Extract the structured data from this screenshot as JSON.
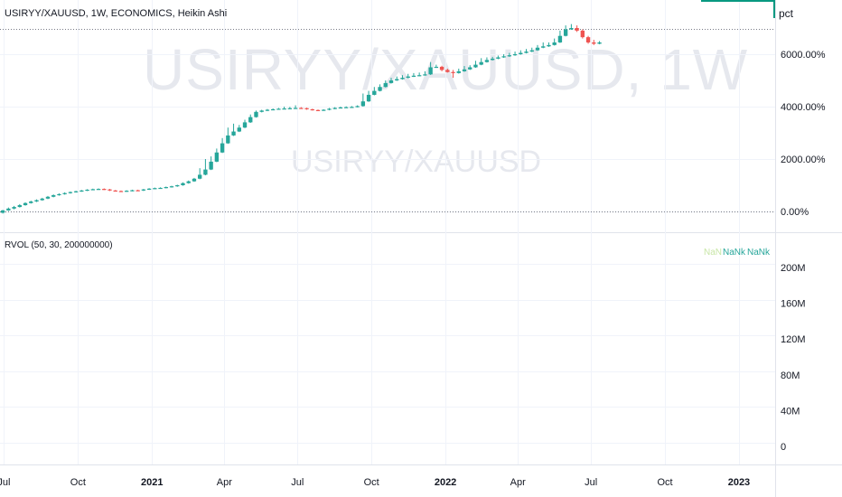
{
  "header": {
    "symbol_title": "USIRYY/XAUUSD, 1W, ECONOMICS, Heikin Ashi",
    "unit_label": "pct",
    "watermark_main": "USIRYY/XAUUSD, 1W",
    "watermark_sub": "USIRYY/XAUUSD"
  },
  "indicator": {
    "title": "RVOL (50, 30, 200000000)",
    "values": [
      "NaN",
      "NaNk",
      "NaNk"
    ],
    "value_colors": [
      "#c8e6a6",
      "#26a69a",
      "#26a69a"
    ]
  },
  "colors": {
    "up": "#26a69a",
    "down": "#ef5350",
    "axis_text": "#131722",
    "accent": "#089981"
  },
  "chart_data": {
    "type": "candlestick",
    "style": "Heikin Ashi",
    "timeframe": "1W",
    "price_axis": {
      "ticks": [
        0,
        2000,
        4000,
        6000
      ],
      "tick_labels": [
        "0.00%",
        "2000.00%",
        "4000.00%",
        "6000.00%"
      ],
      "range": [
        -100,
        7200
      ]
    },
    "volume_axis": {
      "tick_labels": [
        "200M",
        "160M",
        "120M",
        "80M",
        "40M",
        "0"
      ]
    },
    "time_axis": {
      "labels": [
        "Jul",
        "Oct",
        "2021",
        "Apr",
        "Jul",
        "Oct",
        "2022",
        "Apr",
        "Jul",
        "Oct",
        "2023"
      ],
      "label_dates": [
        "2020-07-01",
        "2020-10-01",
        "2021-01-01",
        "2021-04-01",
        "2021-07-01",
        "2021-10-01",
        "2022-01-01",
        "2022-04-01",
        "2022-07-01",
        "2022-10-01",
        "2023-01-01"
      ],
      "range": [
        "2020-06-26",
        "2023-02-15"
      ]
    },
    "reference_lines": [
      0,
      6950
    ],
    "candle_interval_days": 7,
    "first_candle_date": "2020-06-26",
    "candles": [
      [
        -50,
        40,
        -80,
        60
      ],
      [
        40,
        110,
        20,
        150
      ],
      [
        110,
        170,
        80,
        210
      ],
      [
        170,
        240,
        150,
        280
      ],
      [
        240,
        320,
        220,
        350
      ],
      [
        320,
        380,
        300,
        410
      ],
      [
        380,
        430,
        360,
        460
      ],
      [
        430,
        490,
        410,
        520
      ],
      [
        490,
        560,
        470,
        590
      ],
      [
        560,
        620,
        540,
        650
      ],
      [
        620,
        660,
        600,
        690
      ],
      [
        660,
        700,
        640,
        730
      ],
      [
        700,
        740,
        680,
        760
      ],
      [
        740,
        770,
        720,
        790
      ],
      [
        770,
        800,
        750,
        820
      ],
      [
        800,
        830,
        780,
        850
      ],
      [
        830,
        850,
        810,
        870
      ],
      [
        850,
        860,
        830,
        880
      ],
      [
        860,
        840,
        820,
        880
      ],
      [
        840,
        800,
        780,
        860
      ],
      [
        800,
        780,
        760,
        820
      ],
      [
        780,
        770,
        750,
        800
      ],
      [
        770,
        790,
        750,
        810
      ],
      [
        790,
        810,
        770,
        830
      ],
      [
        810,
        800,
        780,
        830
      ],
      [
        800,
        840,
        780,
        860
      ],
      [
        840,
        870,
        820,
        890
      ],
      [
        870,
        890,
        850,
        910
      ],
      [
        890,
        900,
        870,
        920
      ],
      [
        900,
        930,
        880,
        950
      ],
      [
        930,
        960,
        910,
        980
      ],
      [
        960,
        1000,
        940,
        1020
      ],
      [
        1000,
        1080,
        980,
        1110
      ],
      [
        1080,
        1150,
        1060,
        1180
      ],
      [
        1150,
        1250,
        1130,
        1280
      ],
      [
        1250,
        1400,
        1230,
        1650
      ],
      [
        1400,
        1600,
        1380,
        2000
      ],
      [
        1600,
        1900,
        1580,
        2100
      ],
      [
        1900,
        2250,
        1880,
        2400
      ],
      [
        2250,
        2600,
        2230,
        2800
      ],
      [
        2600,
        2900,
        2580,
        3200
      ],
      [
        2900,
        3050,
        2880,
        3350
      ],
      [
        3050,
        3200,
        3030,
        3300
      ],
      [
        3200,
        3400,
        3180,
        3500
      ],
      [
        3400,
        3600,
        3380,
        3700
      ],
      [
        3600,
        3800,
        3580,
        3850
      ],
      [
        3800,
        3850,
        3780,
        3880
      ],
      [
        3850,
        3880,
        3830,
        3910
      ],
      [
        3880,
        3900,
        3860,
        3930
      ],
      [
        3900,
        3920,
        3880,
        3950
      ],
      [
        3920,
        3930,
        3900,
        4000
      ],
      [
        3930,
        3940,
        3910,
        3990
      ],
      [
        3940,
        3950,
        3920,
        4050
      ],
      [
        3950,
        3940,
        3920,
        3980
      ],
      [
        3940,
        3900,
        3880,
        3960
      ],
      [
        3900,
        3870,
        3850,
        3920
      ],
      [
        3870,
        3860,
        3840,
        3890
      ],
      [
        3860,
        3880,
        3840,
        3900
      ],
      [
        3880,
        3920,
        3860,
        3950
      ],
      [
        3920,
        3950,
        3900,
        3980
      ],
      [
        3950,
        3970,
        3930,
        4000
      ],
      [
        3970,
        3980,
        3950,
        4010
      ],
      [
        3980,
        3990,
        3960,
        4020
      ],
      [
        3990,
        4020,
        3970,
        4050
      ],
      [
        4020,
        4200,
        4000,
        4500
      ],
      [
        4200,
        4450,
        4180,
        4600
      ],
      [
        4450,
        4600,
        4430,
        4750
      ],
      [
        4600,
        4750,
        4580,
        4850
      ],
      [
        4750,
        4900,
        4730,
        5000
      ],
      [
        4900,
        5000,
        4880,
        5100
      ],
      [
        5000,
        5050,
        4980,
        5150
      ],
      [
        5050,
        5100,
        5030,
        5200
      ],
      [
        5100,
        5150,
        5080,
        5250
      ],
      [
        5150,
        5180,
        5130,
        5280
      ],
      [
        5180,
        5200,
        5160,
        5300
      ],
      [
        5200,
        5230,
        5180,
        5350
      ],
      [
        5230,
        5500,
        5210,
        5700
      ],
      [
        5500,
        5520,
        5480,
        5600
      ],
      [
        5520,
        5400,
        5350,
        5560
      ],
      [
        5400,
        5320,
        5300,
        5450
      ],
      [
        5320,
        5280,
        5100,
        5400
      ],
      [
        5280,
        5350,
        5260,
        5450
      ],
      [
        5350,
        5420,
        5330,
        5550
      ],
      [
        5420,
        5500,
        5400,
        5580
      ],
      [
        5500,
        5600,
        5480,
        5750
      ],
      [
        5600,
        5700,
        5580,
        5850
      ],
      [
        5700,
        5780,
        5680,
        5880
      ],
      [
        5780,
        5830,
        5760,
        5900
      ],
      [
        5830,
        5880,
        5810,
        5950
      ],
      [
        5880,
        5920,
        5860,
        6000
      ],
      [
        5920,
        5960,
        5900,
        6050
      ],
      [
        5960,
        6000,
        5940,
        6100
      ],
      [
        6000,
        6050,
        5980,
        6150
      ],
      [
        6050,
        6100,
        6030,
        6200
      ],
      [
        6100,
        6150,
        6080,
        6250
      ],
      [
        6150,
        6250,
        6130,
        6350
      ],
      [
        6250,
        6300,
        6230,
        6450
      ],
      [
        6300,
        6350,
        6280,
        6450
      ],
      [
        6350,
        6450,
        6330,
        6600
      ],
      [
        6450,
        6700,
        6430,
        6900
      ],
      [
        6700,
        6950,
        6680,
        7100
      ],
      [
        6950,
        7000,
        6930,
        7150
      ],
      [
        7000,
        6900,
        6850,
        7100
      ],
      [
        6900,
        6650,
        6600,
        6950
      ],
      [
        6650,
        6450,
        6400,
        6700
      ],
      [
        6450,
        6400,
        6350,
        6550
      ],
      [
        6400,
        6450,
        6380,
        6500
      ]
    ]
  }
}
